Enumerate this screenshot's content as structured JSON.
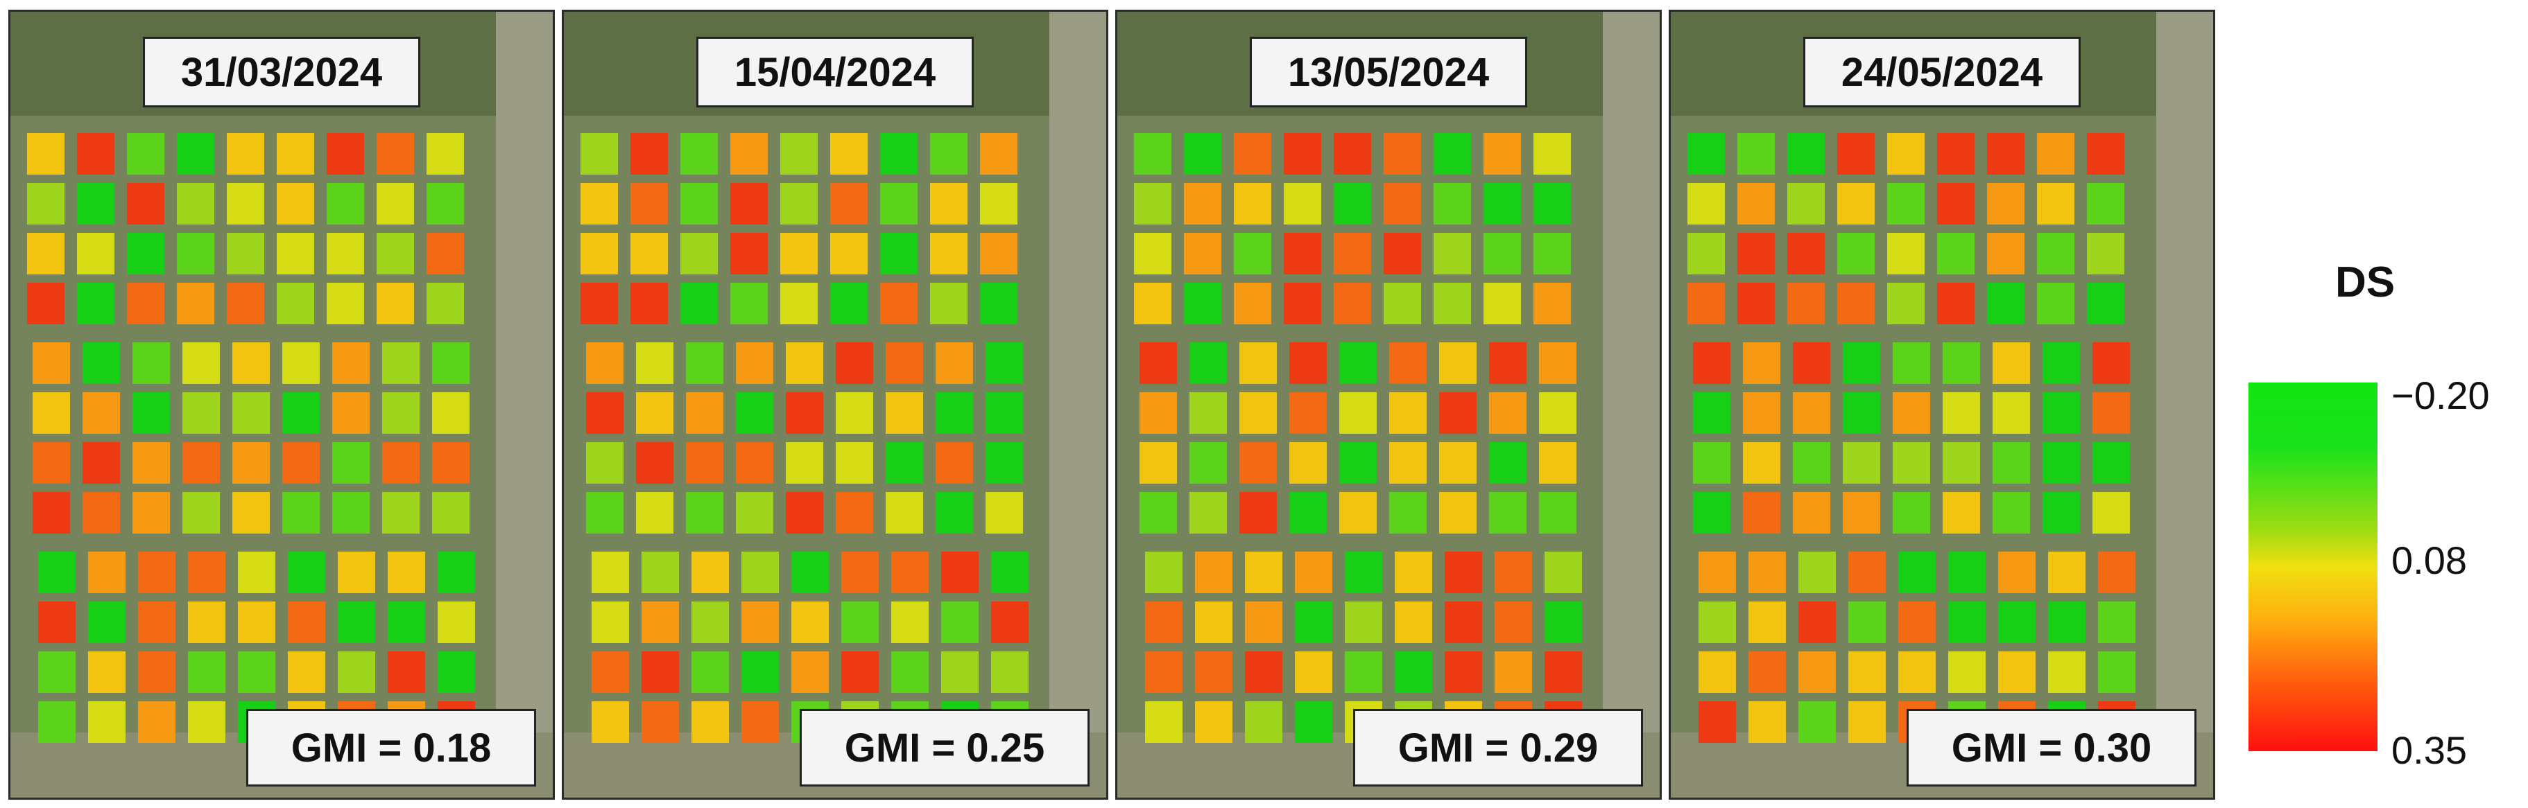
{
  "panels": [
    {
      "date": "31/03/2024",
      "gmi": "GMI = 0.18"
    },
    {
      "date": "15/04/2024",
      "gmi": "GMI = 0.25"
    },
    {
      "date": "13/05/2024",
      "gmi": "GMI = 0.29"
    },
    {
      "date": "24/05/2024",
      "gmi": "GMI = 0.30"
    }
  ],
  "legend": {
    "title": "DS",
    "ticks": [
      "−0.20",
      "0.08",
      "0.35"
    ],
    "colors": {
      "low": "#12e412",
      "mid": "#f0e010",
      "high": "#ff1010"
    }
  }
}
